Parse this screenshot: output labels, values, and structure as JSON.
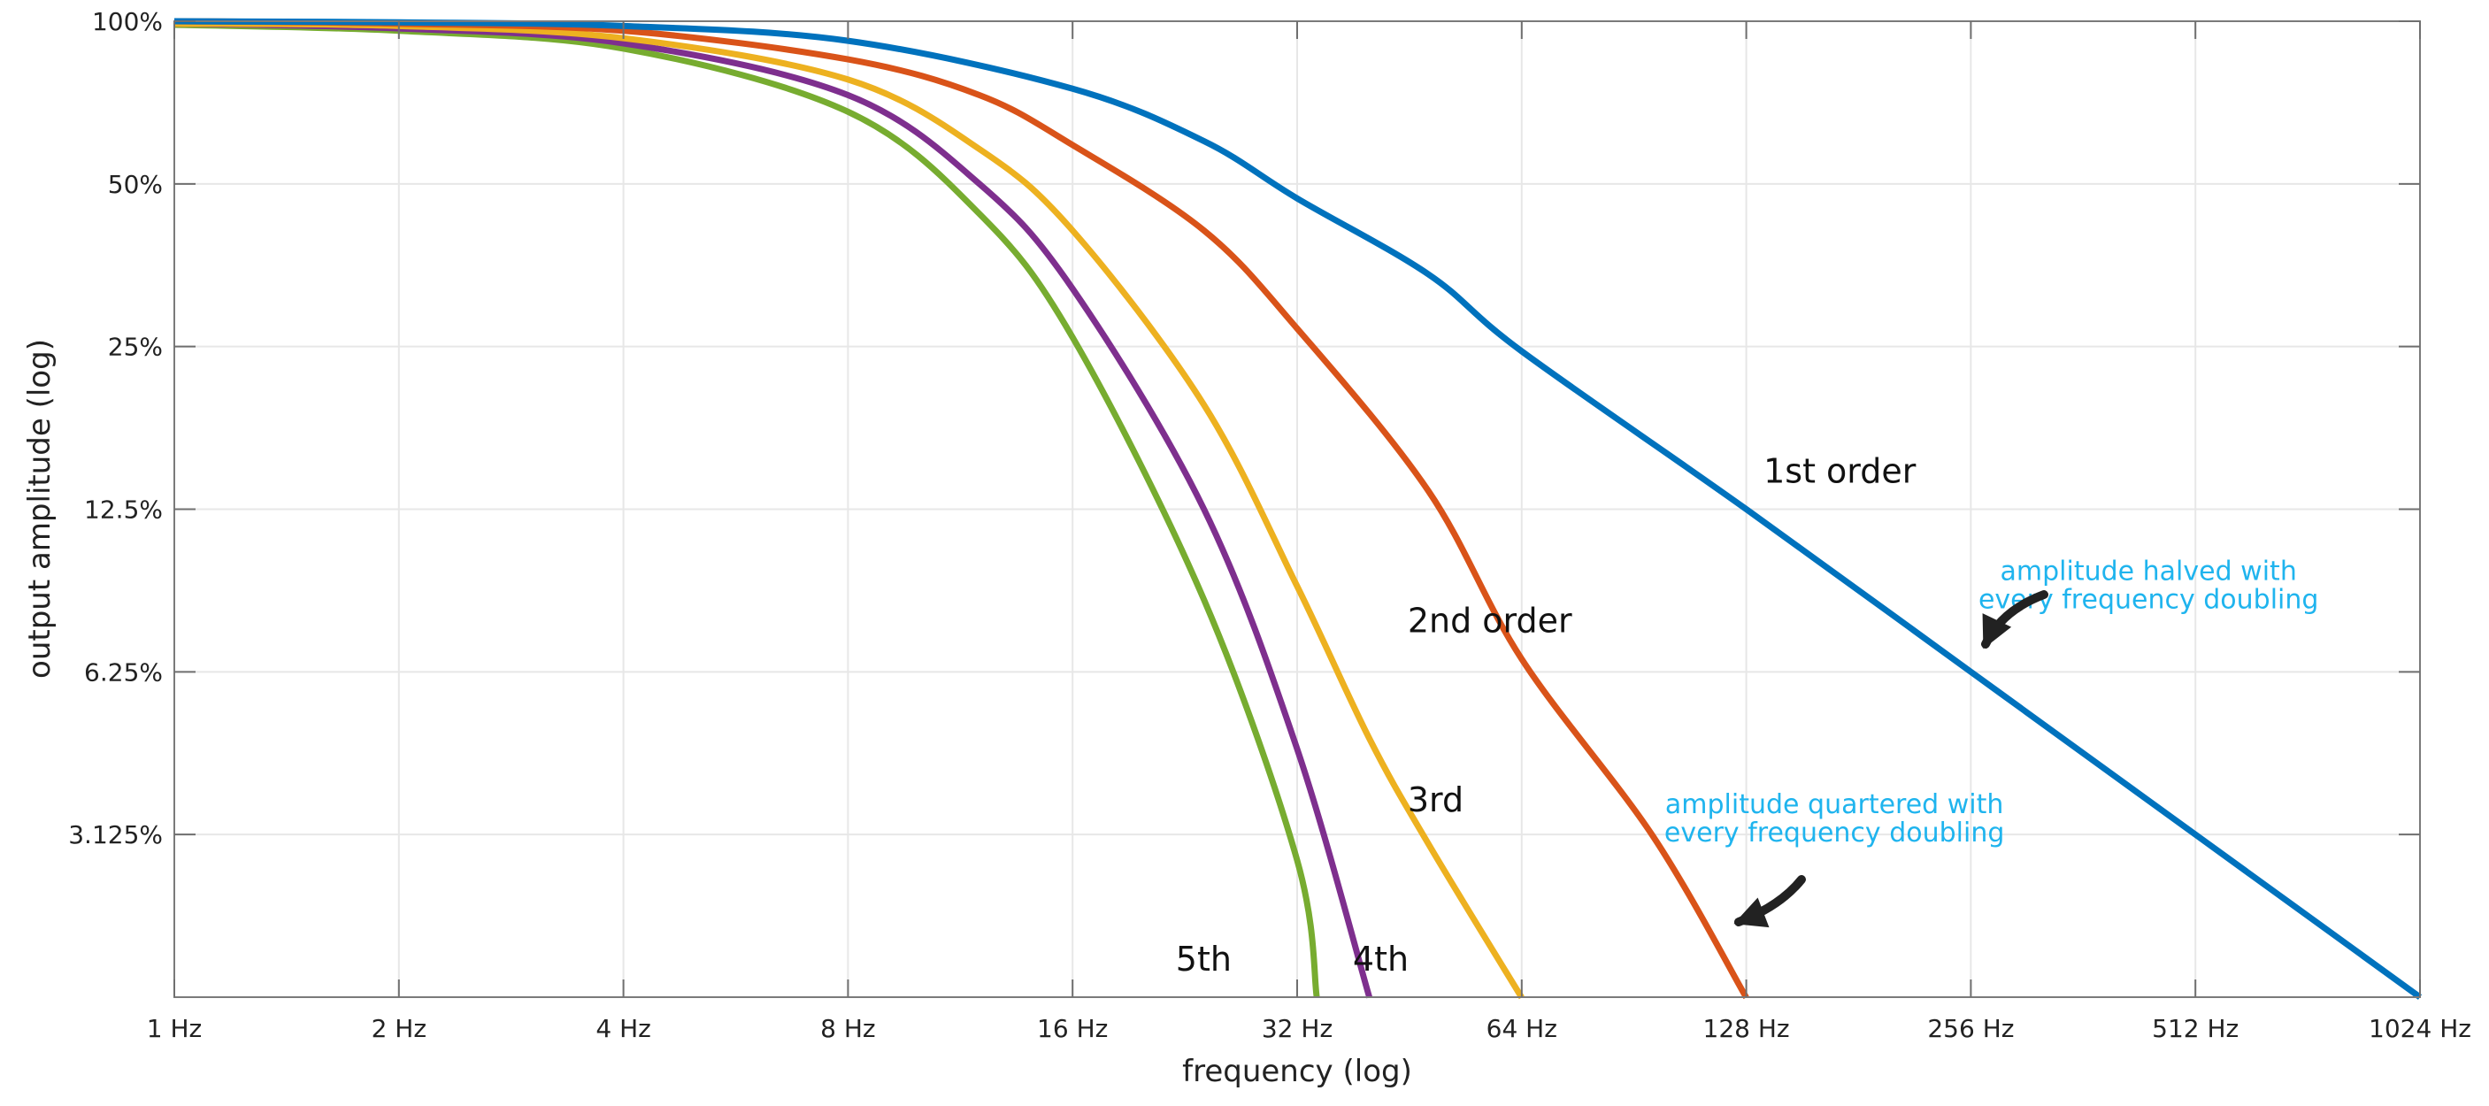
{
  "chart_data": {
    "type": "line",
    "title": "",
    "xlabel": "frequency (log)",
    "ylabel": "output amplitude (log)",
    "x_scale": "log2",
    "y_scale": "log2",
    "xlim": [
      1,
      1024
    ],
    "ylim": [
      0.015625,
      1
    ],
    "grid": true,
    "x_ticks": [
      {
        "value": 1,
        "label": "1 Hz"
      },
      {
        "value": 2,
        "label": "2 Hz"
      },
      {
        "value": 4,
        "label": "4 Hz"
      },
      {
        "value": 8,
        "label": "8 Hz"
      },
      {
        "value": 16,
        "label": "16 Hz"
      },
      {
        "value": 32,
        "label": "32 Hz"
      },
      {
        "value": 64,
        "label": "64 Hz"
      },
      {
        "value": 128,
        "label": "128 Hz"
      },
      {
        "value": 256,
        "label": "256 Hz"
      },
      {
        "value": 512,
        "label": "512 Hz"
      },
      {
        "value": 1024,
        "label": "1024 Hz"
      }
    ],
    "y_ticks": [
      {
        "value": 1,
        "label": "100%"
      },
      {
        "value": 0.5,
        "label": "50%"
      },
      {
        "value": 0.25,
        "label": "25%"
      },
      {
        "value": 0.125,
        "label": "12.5%"
      },
      {
        "value": 0.0625,
        "label": "6.25%"
      },
      {
        "value": 0.03125,
        "label": "3.125%"
      }
    ],
    "series": [
      {
        "label": "1st order",
        "color": "#0072BD",
        "points": [
          [
            1,
            1.0
          ],
          [
            2,
            0.995
          ],
          [
            4,
            0.98
          ],
          [
            8,
            0.92
          ],
          [
            16,
            0.75
          ],
          [
            24,
            0.6
          ],
          [
            32,
            0.47
          ],
          [
            48,
            0.34
          ],
          [
            64,
            0.245
          ],
          [
            128,
            0.125
          ],
          [
            256,
            0.0625
          ],
          [
            512,
            0.03125
          ],
          [
            1024,
            0.015625
          ]
        ]
      },
      {
        "label": "2nd order",
        "color": "#D95319",
        "points": [
          [
            1,
            1.0
          ],
          [
            2,
            0.99
          ],
          [
            4,
            0.96
          ],
          [
            8,
            0.85
          ],
          [
            12,
            0.73
          ],
          [
            16,
            0.59
          ],
          [
            24,
            0.41
          ],
          [
            32,
            0.27
          ],
          [
            48,
            0.135
          ],
          [
            64,
            0.066
          ],
          [
            96,
            0.031
          ],
          [
            128,
            0.0156
          ]
        ]
      },
      {
        "label": "3rd",
        "color": "#EDB120",
        "points": [
          [
            1,
            0.99
          ],
          [
            2,
            0.98
          ],
          [
            4,
            0.93
          ],
          [
            8,
            0.78
          ],
          [
            12,
            0.58
          ],
          [
            16,
            0.41
          ],
          [
            24,
            0.195
          ],
          [
            32,
            0.09
          ],
          [
            40,
            0.047
          ],
          [
            48,
            0.03
          ],
          [
            64,
            0.0156
          ]
        ]
      },
      {
        "label": "4th",
        "color": "#7E2F8E",
        "points": [
          [
            1,
            0.99
          ],
          [
            2,
            0.97
          ],
          [
            4,
            0.91
          ],
          [
            8,
            0.73
          ],
          [
            12,
            0.5
          ],
          [
            16,
            0.32
          ],
          [
            24,
            0.125
          ],
          [
            32,
            0.045
          ],
          [
            40,
            0.0156
          ]
        ]
      },
      {
        "label": "5th",
        "color": "#77AC30",
        "points": [
          [
            1,
            0.985
          ],
          [
            2,
            0.96
          ],
          [
            4,
            0.89
          ],
          [
            8,
            0.68
          ],
          [
            12,
            0.44
          ],
          [
            16,
            0.26
          ],
          [
            24,
            0.085
          ],
          [
            32,
            0.028
          ],
          [
            34,
            0.0156
          ]
        ]
      }
    ],
    "series_labels": [
      {
        "text": "1st order",
        "x": 135,
        "y": 0.14
      },
      {
        "text": "2nd order",
        "x": 45,
        "y": 0.074
      },
      {
        "text": "3rd",
        "x": 45,
        "y": 0.0345
      },
      {
        "text": "4th",
        "x": 38,
        "y": 0.0175
      },
      {
        "text": "5th",
        "x": 22,
        "y": 0.0175
      }
    ],
    "annotations": [
      {
        "lines": [
          "amplitude halved with",
          "every frequency doubling"
        ],
        "color": "#1FB4EE",
        "x": 443,
        "y": 0.0925
      },
      {
        "lines": [
          "amplitude quartered with",
          "every frequency doubling"
        ],
        "color": "#1FB4EE",
        "x": 168,
        "y": 0.0342
      }
    ]
  }
}
